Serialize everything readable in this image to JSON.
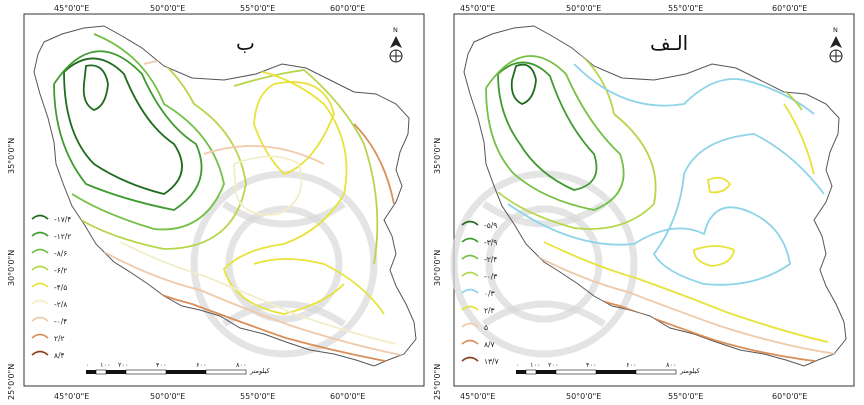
{
  "panels": [
    {
      "title": "ب",
      "lon_ticks": [
        "45°0'0\"E",
        "50°0'0\"E",
        "55°0'0\"E",
        "60°0'0\"E"
      ],
      "lat_ticks": [
        "35°0'0\"N",
        "30°0'0\"N",
        "25°0'0\"N"
      ],
      "legend": [
        {
          "label": "-۱۷/۴",
          "color": "#1e6b1e"
        },
        {
          "label": "-۱۲/۲",
          "color": "#3f9a2f"
        },
        {
          "label": "-۸/۶",
          "color": "#74c045"
        },
        {
          "label": "-۶/۲",
          "color": "#b5d64a"
        },
        {
          "label": "-۴/۵",
          "color": "#e8e23a"
        },
        {
          "label": "-۲/۸",
          "color": "#f3eec8"
        },
        {
          "label": "-۰/۴",
          "color": "#f0c9a8"
        },
        {
          "label": "۲/۲",
          "color": "#d98f5a"
        },
        {
          "label": "۸/۴",
          "color": "#8a4318"
        }
      ],
      "scale_labels": [
        "۰",
        "۱۰۰",
        "۲۰۰",
        "۴۰۰",
        "۶۰۰",
        "۸۰۰",
        "کیلومتر"
      ],
      "north_label": "N"
    },
    {
      "title": "الـف",
      "lon_ticks": [
        "45°0'0\"E",
        "50°0'0\"E",
        "55°0'0\"E",
        "60°0'0\"E"
      ],
      "lat_ticks": [
        "35°0'0\"N",
        "30°0'0\"N",
        "25°0'0\"N"
      ],
      "legend": [
        {
          "label": "-۵/۹",
          "color": "#1e6b1e"
        },
        {
          "label": "-۳/۹",
          "color": "#3f9a2f"
        },
        {
          "label": "-۲/۴",
          "color": "#74c045"
        },
        {
          "label": "-۰/۳",
          "color": "#b5d64a"
        },
        {
          "label": "۰/۳",
          "color": "#8ed3e8"
        },
        {
          "label": "۲/۳",
          "color": "#e8e23a"
        },
        {
          "label": "۵",
          "color": "#f0c9a8"
        },
        {
          "label": "۸/۷",
          "color": "#d98f5a"
        },
        {
          "label": "۱۳/۷",
          "color": "#8a4318"
        }
      ],
      "scale_labels": [
        "۰",
        "۱۰۰",
        "۲۰۰",
        "۴۰۰",
        "۶۰۰",
        "۸۰۰",
        "کیلومتر"
      ],
      "north_label": "N"
    }
  ]
}
